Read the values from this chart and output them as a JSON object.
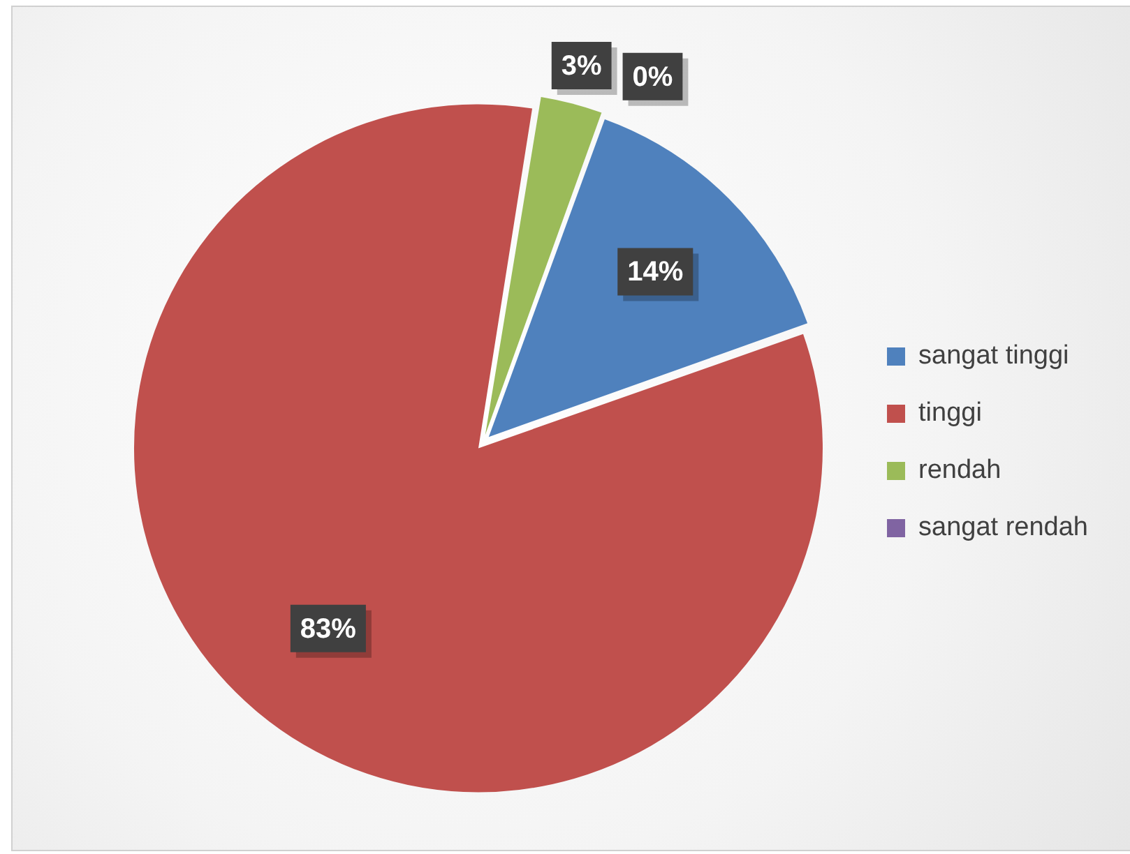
{
  "chart_data": {
    "type": "pie",
    "categories": [
      "sangat tinggi",
      "tinggi",
      "rendah",
      "sangat rendah"
    ],
    "values": [
      14,
      83,
      3,
      0
    ],
    "colors": [
      "#4f81bd",
      "#c0504d",
      "#9bbb59",
      "#8064a2"
    ],
    "value_labels": [
      "14%",
      "83%",
      "3%",
      "0%"
    ],
    "legend": "right"
  }
}
